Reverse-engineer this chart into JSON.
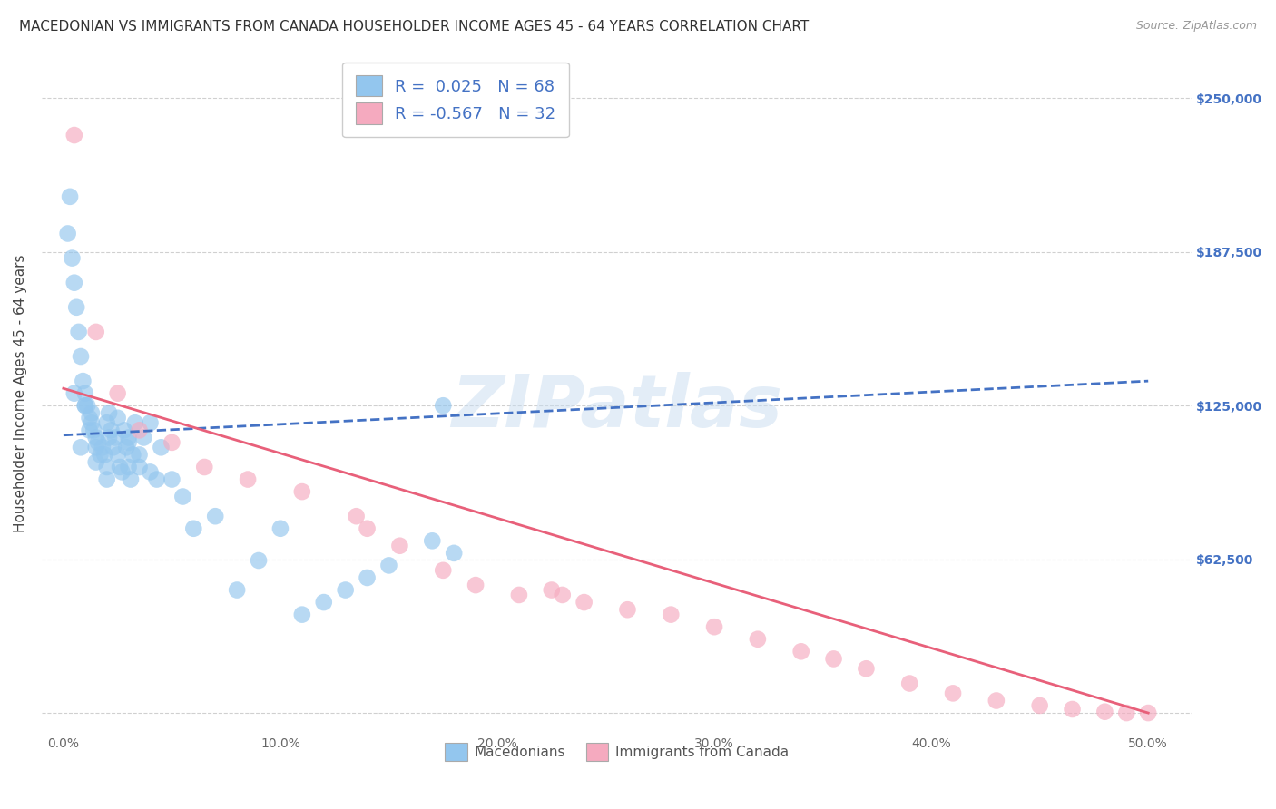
{
  "title": "MACEDONIAN VS IMMIGRANTS FROM CANADA HOUSEHOLDER INCOME AGES 45 - 64 YEARS CORRELATION CHART",
  "source": "Source: ZipAtlas.com",
  "xlabel_ticks": [
    "0.0%",
    "10.0%",
    "20.0%",
    "30.0%",
    "40.0%",
    "50.0%"
  ],
  "xlabel_tick_vals": [
    0.0,
    10.0,
    20.0,
    30.0,
    40.0,
    50.0
  ],
  "ylabel_right": [
    "$62,500",
    "$125,000",
    "$187,500",
    "$250,000"
  ],
  "ylabel_right_vals": [
    62500,
    125000,
    187500,
    250000
  ],
  "ylabel_tick_vals": [
    0,
    62500,
    125000,
    187500,
    250000
  ],
  "xlim": [
    -1.0,
    52.0
  ],
  "ylim": [
    -8000,
    268000
  ],
  "legend_blue_r": "0.025",
  "legend_blue_n": "68",
  "legend_pink_r": "-0.567",
  "legend_pink_n": "32",
  "legend_label_blue": "Macedonians",
  "legend_label_pink": "Immigrants from Canada",
  "scatter_blue_x": [
    0.2,
    0.3,
    0.4,
    0.5,
    0.6,
    0.7,
    0.8,
    0.9,
    1.0,
    1.0,
    1.1,
    1.2,
    1.2,
    1.3,
    1.3,
    1.4,
    1.5,
    1.5,
    1.6,
    1.7,
    1.8,
    1.9,
    2.0,
    2.0,
    2.1,
    2.1,
    2.2,
    2.3,
    2.4,
    2.5,
    2.6,
    2.7,
    2.8,
    2.9,
    3.0,
    3.0,
    3.1,
    3.2,
    3.3,
    3.5,
    3.7,
    4.0,
    4.3,
    4.5,
    5.0,
    5.5,
    6.0,
    7.0,
    8.0,
    9.0,
    10.0,
    11.0,
    12.0,
    13.0,
    14.0,
    15.0,
    17.0,
    18.0,
    0.5,
    0.8,
    1.0,
    1.5,
    2.0,
    2.5,
    3.0,
    3.5,
    4.0,
    17.5
  ],
  "scatter_blue_y": [
    195000,
    210000,
    185000,
    175000,
    165000,
    155000,
    145000,
    135000,
    130000,
    125000,
    125000,
    120000,
    115000,
    118000,
    122000,
    115000,
    112000,
    108000,
    110000,
    105000,
    108000,
    105000,
    100000,
    118000,
    112000,
    122000,
    115000,
    108000,
    112000,
    105000,
    100000,
    98000,
    115000,
    108000,
    112000,
    100000,
    95000,
    105000,
    118000,
    100000,
    112000,
    118000,
    95000,
    108000,
    95000,
    88000,
    75000,
    80000,
    50000,
    62000,
    75000,
    40000,
    45000,
    50000,
    55000,
    60000,
    70000,
    65000,
    130000,
    108000,
    125000,
    102000,
    95000,
    120000,
    110000,
    105000,
    98000,
    125000
  ],
  "scatter_pink_x": [
    0.5,
    1.5,
    2.5,
    3.5,
    5.0,
    6.5,
    8.5,
    11.0,
    13.5,
    14.0,
    15.5,
    17.5,
    19.0,
    21.0,
    22.5,
    23.0,
    24.0,
    26.0,
    28.0,
    30.0,
    32.0,
    34.0,
    35.5,
    37.0,
    39.0,
    41.0,
    43.0,
    45.0,
    46.5,
    48.0,
    49.0,
    50.0
  ],
  "scatter_pink_y": [
    235000,
    155000,
    130000,
    115000,
    110000,
    100000,
    95000,
    90000,
    80000,
    75000,
    68000,
    58000,
    52000,
    48000,
    50000,
    48000,
    45000,
    42000,
    40000,
    35000,
    30000,
    25000,
    22000,
    18000,
    12000,
    8000,
    5000,
    3000,
    1500,
    500,
    0,
    0
  ],
  "blue_line_x": [
    0.0,
    50.0
  ],
  "blue_line_y": [
    113000,
    135000
  ],
  "pink_line_x": [
    0.0,
    50.0
  ],
  "pink_line_y": [
    132000,
    0
  ],
  "grid_color": "#d0d0d0",
  "blue_color": "#93C6EE",
  "pink_color": "#F5AABF",
  "blue_line_color": "#4472C4",
  "pink_line_color": "#E8607A",
  "watermark_text": "ZIPatlas",
  "background_color": "#ffffff",
  "title_fontsize": 11,
  "axis_label_fontsize": 11,
  "tick_fontsize": 10,
  "right_tick_color": "#4472C4"
}
